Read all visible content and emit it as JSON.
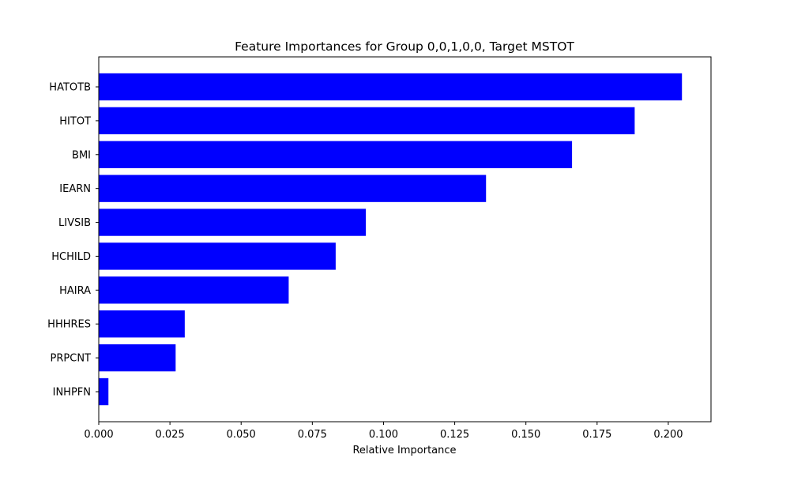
{
  "chart_data": {
    "type": "bar",
    "orientation": "horizontal",
    "title": "Feature Importances for Group 0,0,1,0,0, Target MSTOT",
    "xlabel": "Relative Importance",
    "ylabel": "",
    "categories": [
      "HATOTB",
      "HITOT",
      "BMI",
      "IEARN",
      "LIVSIB",
      "HCHILD",
      "HAIRA",
      "HHHRES",
      "PRPCNT",
      "INHPFN"
    ],
    "values": [
      0.2048,
      0.1882,
      0.1662,
      0.136,
      0.0938,
      0.0832,
      0.0667,
      0.0302,
      0.027,
      0.0034
    ],
    "xlim": [
      0.0,
      0.215
    ],
    "xticks": [
      0.0,
      0.025,
      0.05,
      0.075,
      0.1,
      0.125,
      0.15,
      0.175,
      0.2
    ],
    "xtick_labels": [
      "0.000",
      "0.025",
      "0.050",
      "0.075",
      "0.100",
      "0.125",
      "0.150",
      "0.175",
      "0.200"
    ],
    "bar_color": "#0000ff",
    "grid": false,
    "legend": "none"
  }
}
